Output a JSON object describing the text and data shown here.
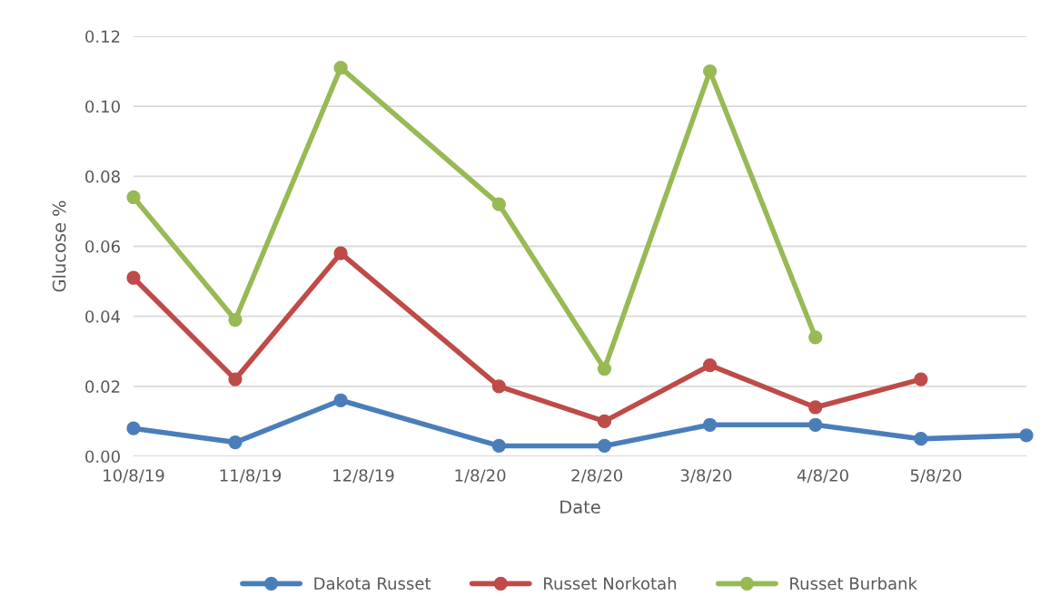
{
  "chart_data": {
    "type": "line",
    "xlabel": "Date",
    "ylabel": "Glucose %",
    "x": [
      "2019-10-08",
      "2019-11-04",
      "2019-12-02",
      "2020-01-13",
      "2020-02-10",
      "2020-03-09",
      "2020-04-06",
      "2020-05-04",
      "2020-06-01"
    ],
    "series": [
      {
        "name": "Dakota Russet",
        "color": "#4a7ebb",
        "values": [
          0.008,
          0.004,
          0.016,
          0.003,
          0.003,
          0.009,
          0.009,
          0.005,
          0.006
        ]
      },
      {
        "name": "Russet Norkotah",
        "color": "#be4b48",
        "values": [
          0.051,
          0.022,
          0.058,
          0.02,
          0.01,
          0.026,
          0.014,
          0.022,
          null
        ]
      },
      {
        "name": "Russet Burbank",
        "color": "#98b954",
        "values": [
          0.074,
          0.039,
          0.111,
          0.072,
          0.025,
          0.11,
          0.034,
          null,
          null
        ]
      }
    ],
    "xlim": [
      "2019-10-08",
      "2020-06-01"
    ],
    "xticks": [
      {
        "value": "2019-10-08",
        "label": "10/8/19"
      },
      {
        "value": "2019-11-08",
        "label": "11/8/19"
      },
      {
        "value": "2019-12-08",
        "label": "12/8/19"
      },
      {
        "value": "2020-01-08",
        "label": "1/8/20"
      },
      {
        "value": "2020-02-08",
        "label": "2/8/20"
      },
      {
        "value": "2020-03-08",
        "label": "3/8/20"
      },
      {
        "value": "2020-04-08",
        "label": "4/8/20"
      },
      {
        "value": "2020-05-08",
        "label": "5/8/20"
      }
    ],
    "ylim": [
      0,
      0.12
    ],
    "yticks": [
      {
        "value": 0,
        "label": "0.00"
      },
      {
        "value": 0.02,
        "label": "0.02"
      },
      {
        "value": 0.04,
        "label": "0.04"
      },
      {
        "value": 0.06,
        "label": "0.06"
      },
      {
        "value": 0.08,
        "label": "0.08"
      },
      {
        "value": 0.1,
        "label": "0.10"
      },
      {
        "value": 0.12,
        "label": "0.12"
      }
    ],
    "grid": "y",
    "legend": "bottom",
    "marker": "circle",
    "line_style": "solid"
  }
}
